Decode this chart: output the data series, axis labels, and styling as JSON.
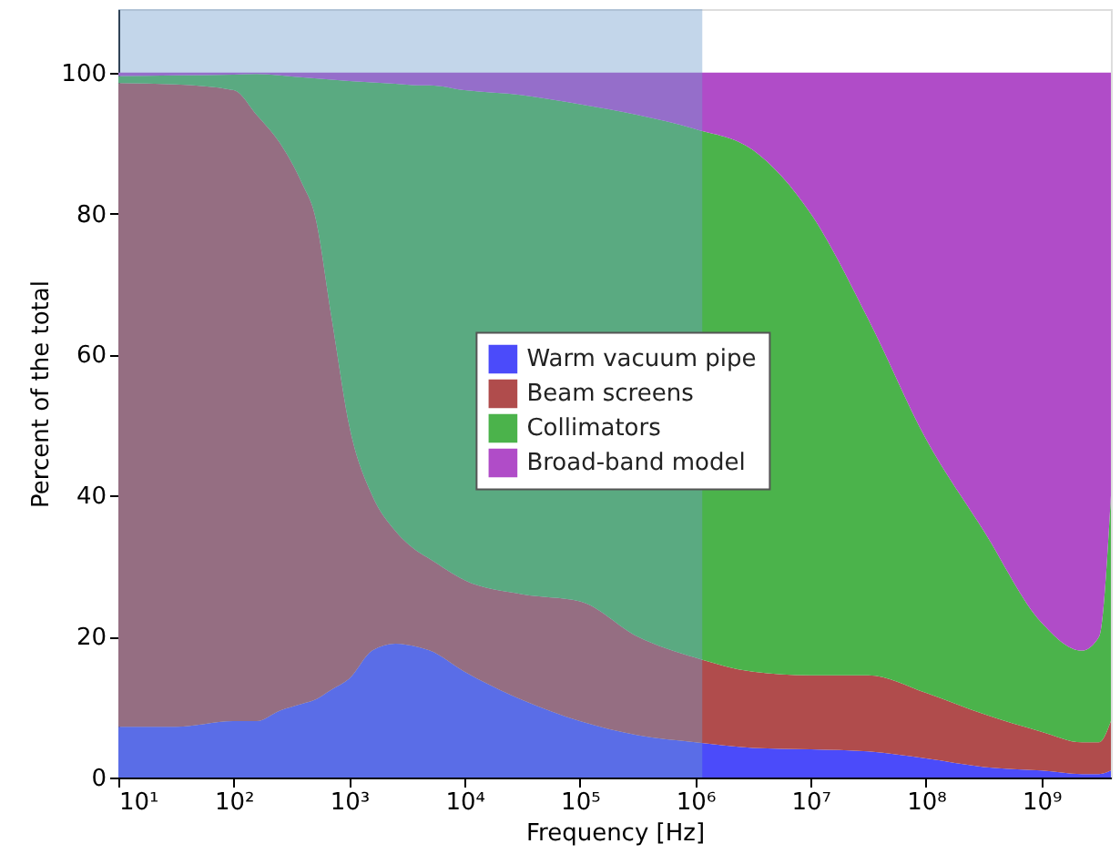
{
  "chart_data": {
    "type": "area",
    "stacked": true,
    "xlabel": "Frequency [Hz]",
    "ylabel": "Percent of the total",
    "log": "x",
    "x": [
      10,
      31.6,
      100,
      158,
      251,
      398,
      501,
      708,
      1000,
      1585,
      2512,
      3981,
      5012,
      10000,
      31623,
      100000,
      316228,
      1000000,
      3162278,
      10000000,
      31622777,
      100000000,
      316227766,
      1000000000,
      2240000000,
      3160000000,
      4000000000
    ],
    "series": [
      {
        "name": "Warm vacuum pipe",
        "color": "#4b4bfa",
        "values": [
          7.2,
          7.2,
          8,
          8,
          9.5,
          10.5,
          11,
          12.5,
          14,
          18,
          19,
          18.5,
          18,
          15,
          11,
          8,
          6,
          5,
          4.2,
          4,
          3.7,
          2.7,
          1.5,
          1,
          0.5,
          0.5,
          1
        ]
      },
      {
        "name": "Beam screens",
        "color": "#b04c4c",
        "values": [
          91.3,
          91.1,
          89.5,
          86,
          80.5,
          73.5,
          69,
          52.5,
          36,
          22,
          16,
          13.5,
          13,
          13,
          15,
          17,
          14,
          12,
          10.8,
          10.5,
          10.8,
          9.3,
          7.5,
          5.5,
          4.5,
          4.5,
          7
        ]
      },
      {
        "name": "Collimators",
        "color": "#4bb34b",
        "values": [
          1,
          1.3,
          2.2,
          5.8,
          9.6,
          15.3,
          19.2,
          34,
          48.8,
          58.6,
          63.4,
          66.2,
          67.2,
          69.5,
          70.8,
          70.5,
          74,
          75,
          74,
          65.5,
          50.5,
          36,
          26,
          15.5,
          13,
          15,
          32
        ]
      },
      {
        "name": "Broad-band model",
        "color": "#b04cc8",
        "values": [
          0.5,
          0.4,
          0.3,
          0.2,
          0.4,
          0.7,
          0.8,
          1,
          1.2,
          1.4,
          1.6,
          1.8,
          1.8,
          2.5,
          3.2,
          4.5,
          6,
          8,
          11,
          20,
          35,
          52,
          65,
          78,
          82,
          80,
          60
        ]
      }
    ],
    "xlim": [
      10,
      4000000000
    ],
    "xticks": [
      {
        "value": 10,
        "label": "10¹"
      },
      {
        "value": 100,
        "label": "10²"
      },
      {
        "value": 1000,
        "label": "10³"
      },
      {
        "value": 10000,
        "label": "10⁴"
      },
      {
        "value": 100000,
        "label": "10⁵"
      },
      {
        "value": 1000000,
        "label": "10⁶"
      },
      {
        "value": 10000000,
        "label": "10⁷"
      },
      {
        "value": 100000000,
        "label": "10⁸"
      },
      {
        "value": 1000000000,
        "label": "10⁹"
      }
    ],
    "ylim": [
      0,
      109
    ],
    "yticks": [
      0,
      20,
      40,
      60,
      80,
      100
    ],
    "bands": [
      {
        "axis": "x",
        "from": 10,
        "to": 1150000,
        "color": "#709dcd"
      }
    ],
    "grid": false,
    "legend": "center"
  }
}
